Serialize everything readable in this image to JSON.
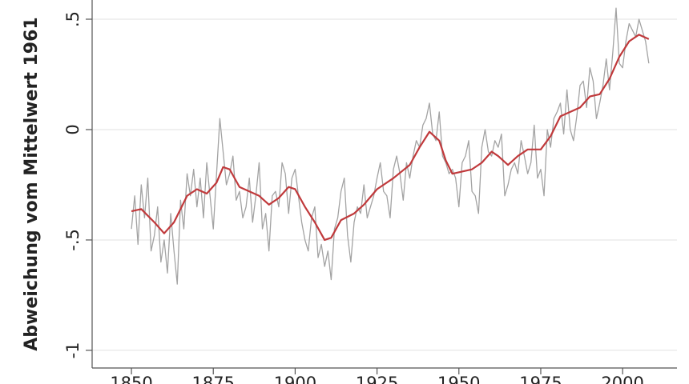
{
  "chart_data": {
    "type": "line",
    "ylabel": "Abweichung vom Mittelwert 1961",
    "xlim": [
      1838,
      2016.6
    ],
    "ylim": [
      -1.08,
      0.587
    ],
    "xticks": [
      1850,
      1875,
      1900,
      1925,
      1950,
      1975,
      2000
    ],
    "yticks": [
      {
        "value": 0.5,
        "label": ".5"
      },
      0,
      {
        "value": -0.5,
        "label": "-.5"
      },
      -1
    ],
    "grid": true,
    "series": [
      {
        "color": "#a3a3a3",
        "x": [
          1850,
          1851,
          1852,
          1853,
          1854,
          1855,
          1856,
          1857,
          1858,
          1859,
          1860,
          1861,
          1862,
          1863,
          1864,
          1865,
          1866,
          1867,
          1868,
          1869,
          1870,
          1871,
          1872,
          1873,
          1874,
          1875,
          1876,
          1877,
          1878,
          1879,
          1880,
          1881,
          1882,
          1883,
          1884,
          1885,
          1886,
          1887,
          1888,
          1889,
          1890,
          1891,
          1892,
          1893,
          1894,
          1895,
          1896,
          1897,
          1898,
          1899,
          1900,
          1901,
          1902,
          1903,
          1904,
          1905,
          1906,
          1907,
          1908,
          1909,
          1910,
          1911,
          1912,
          1913,
          1914,
          1915,
          1916,
          1917,
          1918,
          1919,
          1920,
          1921,
          1922,
          1923,
          1924,
          1925,
          1926,
          1927,
          1928,
          1929,
          1930,
          1931,
          1932,
          1933,
          1934,
          1935,
          1936,
          1937,
          1938,
          1939,
          1940,
          1941,
          1942,
          1943,
          1944,
          1945,
          1946,
          1947,
          1948,
          1949,
          1950,
          1951,
          1952,
          1953,
          1954,
          1955,
          1956,
          1957,
          1958,
          1959,
          1960,
          1961,
          1962,
          1963,
          1964,
          1965,
          1966,
          1967,
          1968,
          1969,
          1970,
          1971,
          1972,
          1973,
          1974,
          1975,
          1976,
          1977,
          1978,
          1979,
          1980,
          1981,
          1982,
          1983,
          1984,
          1985,
          1986,
          1987,
          1988,
          1989,
          1990,
          1991,
          1992,
          1993,
          1994,
          1995,
          1996,
          1997,
          1998,
          1999,
          2000,
          2001,
          2002,
          2003,
          2004,
          2005,
          2006,
          2007,
          2008
        ],
        "values": [
          -0.45,
          -0.3,
          -0.52,
          -0.25,
          -0.4,
          -0.22,
          -0.55,
          -0.48,
          -0.35,
          -0.6,
          -0.5,
          -0.65,
          -0.38,
          -0.55,
          -0.7,
          -0.32,
          -0.45,
          -0.2,
          -0.3,
          -0.18,
          -0.35,
          -0.22,
          -0.4,
          -0.15,
          -0.3,
          -0.45,
          -0.2,
          0.05,
          -0.1,
          -0.25,
          -0.2,
          -0.12,
          -0.32,
          -0.28,
          -0.4,
          -0.35,
          -0.22,
          -0.42,
          -0.3,
          -0.15,
          -0.45,
          -0.38,
          -0.55,
          -0.3,
          -0.28,
          -0.35,
          -0.15,
          -0.2,
          -0.38,
          -0.22,
          -0.18,
          -0.3,
          -0.42,
          -0.5,
          -0.55,
          -0.4,
          -0.35,
          -0.58,
          -0.52,
          -0.62,
          -0.55,
          -0.68,
          -0.45,
          -0.4,
          -0.28,
          -0.22,
          -0.48,
          -0.6,
          -0.42,
          -0.35,
          -0.38,
          -0.25,
          -0.4,
          -0.35,
          -0.3,
          -0.22,
          -0.15,
          -0.28,
          -0.3,
          -0.4,
          -0.18,
          -0.12,
          -0.2,
          -0.32,
          -0.15,
          -0.22,
          -0.12,
          -0.05,
          -0.08,
          0.02,
          0.05,
          0.12,
          -0.02,
          -0.05,
          0.08,
          -0.12,
          -0.15,
          -0.2,
          -0.18,
          -0.22,
          -0.35,
          -0.15,
          -0.12,
          -0.05,
          -0.28,
          -0.3,
          -0.38,
          -0.08,
          0.0,
          -0.1,
          -0.12,
          -0.05,
          -0.08,
          -0.02,
          -0.3,
          -0.25,
          -0.18,
          -0.15,
          -0.2,
          -0.05,
          -0.12,
          -0.2,
          -0.15,
          0.02,
          -0.22,
          -0.18,
          -0.3,
          0.0,
          -0.08,
          0.05,
          0.08,
          0.12,
          -0.02,
          0.18,
          0.0,
          -0.05,
          0.06,
          0.2,
          0.22,
          0.1,
          0.28,
          0.22,
          0.05,
          0.12,
          0.2,
          0.32,
          0.18,
          0.35,
          0.55,
          0.3,
          0.28,
          0.4,
          0.48,
          0.45,
          0.42,
          0.5,
          0.45,
          0.4,
          0.3
        ]
      },
      {
        "color": "#c0393b",
        "x": [
          1850,
          1853,
          1857,
          1860,
          1863,
          1867,
          1870,
          1873,
          1876,
          1878,
          1880,
          1883,
          1886,
          1889,
          1892,
          1895,
          1898,
          1900,
          1903,
          1906,
          1909,
          1911,
          1914,
          1918,
          1921,
          1925,
          1930,
          1935,
          1938,
          1941,
          1944,
          1946,
          1948,
          1951,
          1954,
          1957,
          1960,
          1962,
          1965,
          1968,
          1971,
          1975,
          1978,
          1981,
          1984,
          1987,
          1990,
          1993,
          1996,
          1999,
          2002,
          2005,
          2008
        ],
        "values": [
          -0.37,
          -0.36,
          -0.42,
          -0.47,
          -0.42,
          -0.3,
          -0.27,
          -0.29,
          -0.24,
          -0.17,
          -0.18,
          -0.26,
          -0.28,
          -0.3,
          -0.34,
          -0.31,
          -0.26,
          -0.27,
          -0.35,
          -0.42,
          -0.5,
          -0.49,
          -0.41,
          -0.38,
          -0.34,
          -0.27,
          -0.22,
          -0.16,
          -0.08,
          -0.01,
          -0.05,
          -0.14,
          -0.2,
          -0.19,
          -0.18,
          -0.15,
          -0.1,
          -0.12,
          -0.16,
          -0.12,
          -0.09,
          -0.09,
          -0.03,
          0.06,
          0.08,
          0.1,
          0.15,
          0.16,
          0.23,
          0.33,
          0.4,
          0.43,
          0.41
        ]
      }
    ]
  }
}
